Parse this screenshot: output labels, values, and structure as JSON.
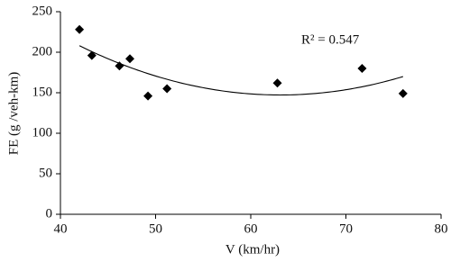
{
  "chart_data": {
    "type": "scatter",
    "x_label": "V (km/hr)",
    "y_label": "FE (g /veh-km)",
    "annotation": "R² = 0.547",
    "trendline": "poly2",
    "color": "#000000",
    "x": [
      42,
      43.3,
      46.2,
      47.3,
      49.2,
      51.2,
      62.8,
      71.7,
      76
    ],
    "values": [
      228,
      196,
      183,
      192,
      146,
      155,
      162,
      180,
      149
    ],
    "xlim": [
      40,
      80
    ],
    "xticks": [
      40,
      50,
      60,
      70,
      80
    ],
    "ylim": [
      0,
      250
    ],
    "yticks": [
      0,
      50,
      100,
      150,
      200,
      250
    ]
  }
}
